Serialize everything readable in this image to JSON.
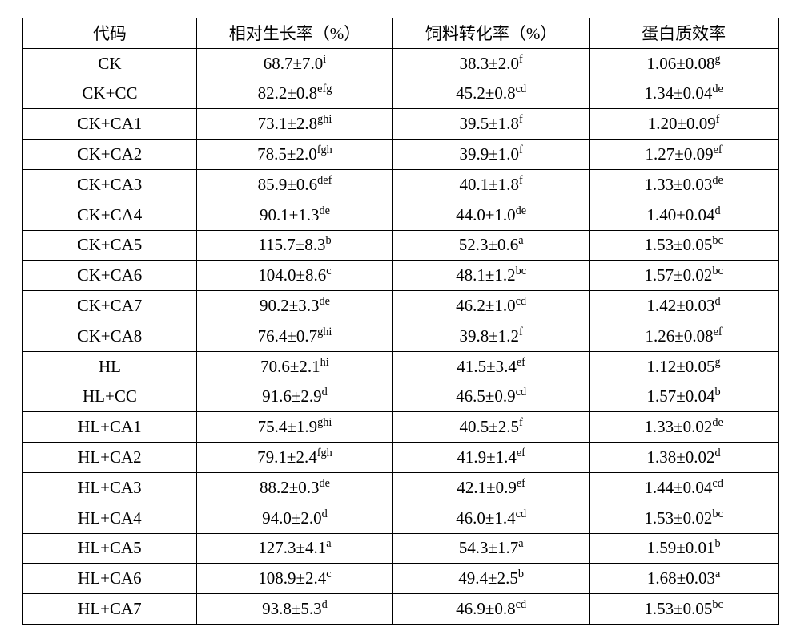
{
  "headers": {
    "code": "代码",
    "growth": "相对生长率（%）",
    "feed": "饲料转化率（%）",
    "protein": "蛋白质效率"
  },
  "rows": [
    {
      "code": "CK",
      "growth_val": "68.7±7.0",
      "growth_sup": "i",
      "feed_val": "38.3±2.0",
      "feed_sup": "f",
      "protein_val": "1.06±0.08",
      "protein_sup": "g"
    },
    {
      "code": "CK+CC",
      "growth_val": "82.2±0.8",
      "growth_sup": "efg",
      "feed_val": "45.2±0.8",
      "feed_sup": "cd",
      "protein_val": "1.34±0.04",
      "protein_sup": "de"
    },
    {
      "code": "CK+CA1",
      "growth_val": "73.1±2.8",
      "growth_sup": "ghi",
      "feed_val": "39.5±1.8",
      "feed_sup": "f",
      "protein_val": "1.20±0.09",
      "protein_sup": "f"
    },
    {
      "code": "CK+CA2",
      "growth_val": "78.5±2.0",
      "growth_sup": "fgh",
      "feed_val": "39.9±1.0",
      "feed_sup": "f",
      "protein_val": "1.27±0.09",
      "protein_sup": "ef"
    },
    {
      "code": "CK+CA3",
      "growth_val": "85.9±0.6",
      "growth_sup": "def",
      "feed_val": "40.1±1.8",
      "feed_sup": "f",
      "protein_val": "1.33±0.03",
      "protein_sup": "de"
    },
    {
      "code": "CK+CA4",
      "growth_val": "90.1±1.3",
      "growth_sup": "de",
      "feed_val": "44.0±1.0",
      "feed_sup": "de",
      "protein_val": "1.40±0.04",
      "protein_sup": "d"
    },
    {
      "code": "CK+CA5",
      "growth_val": "115.7±8.3",
      "growth_sup": "b",
      "feed_val": "52.3±0.6",
      "feed_sup": "a",
      "protein_val": "1.53±0.05",
      "protein_sup": "bc"
    },
    {
      "code": "CK+CA6",
      "growth_val": "104.0±8.6",
      "growth_sup": "c",
      "feed_val": "48.1±1.2",
      "feed_sup": "bc",
      "protein_val": "1.57±0.02",
      "protein_sup": "bc"
    },
    {
      "code": "CK+CA7",
      "growth_val": "90.2±3.3",
      "growth_sup": "de",
      "feed_val": "46.2±1.0",
      "feed_sup": "cd",
      "protein_val": "1.42±0.03",
      "protein_sup": "d"
    },
    {
      "code": "CK+CA8",
      "growth_val": "76.4±0.7",
      "growth_sup": "ghi",
      "feed_val": "39.8±1.2",
      "feed_sup": "f",
      "protein_val": "1.26±0.08",
      "protein_sup": "ef"
    },
    {
      "code": "HL",
      "growth_val": "70.6±2.1",
      "growth_sup": "hi",
      "feed_val": "41.5±3.4",
      "feed_sup": "ef",
      "protein_val": "1.12±0.05",
      "protein_sup": "g"
    },
    {
      "code": "HL+CC",
      "growth_val": "91.6±2.9",
      "growth_sup": "d",
      "feed_val": "46.5±0.9",
      "feed_sup": "cd",
      "protein_val": "1.57±0.04",
      "protein_sup": "b"
    },
    {
      "code": "HL+CA1",
      "growth_val": "75.4±1.9",
      "growth_sup": "ghi",
      "feed_val": "40.5±2.5",
      "feed_sup": "f",
      "protein_val": "1.33±0.02",
      "protein_sup": "de"
    },
    {
      "code": "HL+CA2",
      "growth_val": "79.1±2.4",
      "growth_sup": "fgh",
      "feed_val": "41.9±1.4",
      "feed_sup": "ef",
      "protein_val": "1.38±0.02",
      "protein_sup": "d"
    },
    {
      "code": "HL+CA3",
      "growth_val": "88.2±0.3",
      "growth_sup": "de",
      "feed_val": "42.1±0.9",
      "feed_sup": "ef",
      "protein_val": "1.44±0.04",
      "protein_sup": "cd"
    },
    {
      "code": "HL+CA4",
      "growth_val": "94.0±2.0",
      "growth_sup": "d",
      "feed_val": "46.0±1.4",
      "feed_sup": "cd",
      "protein_val": "1.53±0.02",
      "protein_sup": "bc"
    },
    {
      "code": "HL+CA5",
      "growth_val": "127.3±4.1",
      "growth_sup": "a",
      "feed_val": "54.3±1.7",
      "feed_sup": "a",
      "protein_val": "1.59±0.01",
      "protein_sup": "b"
    },
    {
      "code": "HL+CA6",
      "growth_val": "108.9±2.4",
      "growth_sup": "c",
      "feed_val": "49.4±2.5",
      "feed_sup": "b",
      "protein_val": "1.68±0.03",
      "protein_sup": "a"
    },
    {
      "code": "HL+CA7",
      "growth_val": "93.8±5.3",
      "growth_sup": "d",
      "feed_val": "46.9±0.8",
      "feed_sup": "cd",
      "protein_val": "1.53±0.05",
      "protein_sup": "bc"
    }
  ]
}
